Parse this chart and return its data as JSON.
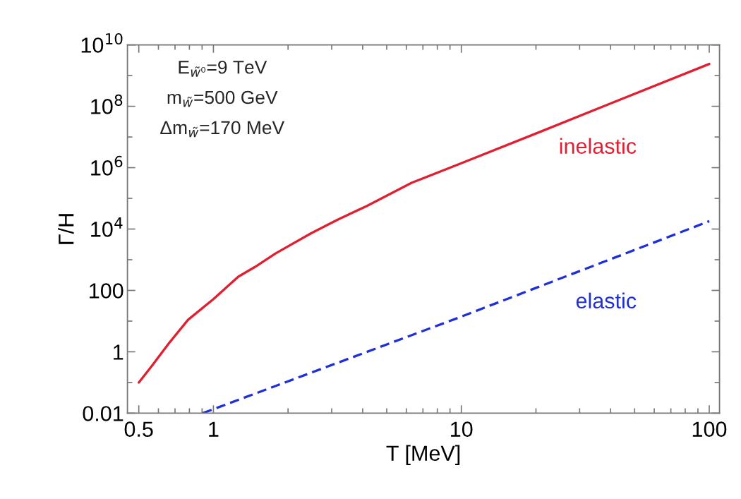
{
  "chart_data": {
    "type": "line",
    "xlabel": "T [MeV]",
    "ylabel": "Γ/H",
    "log": "xy",
    "xlim": [
      0.45,
      110
    ],
    "ylim": [
      0.01,
      10000000000
    ],
    "xticks": [
      0.5,
      1,
      10,
      100
    ],
    "yticks": [
      0.01,
      1,
      100,
      {
        "value": 10000,
        "label": "10$^{4}$"
      },
      {
        "value": 1000000,
        "label": "10$^{6}$"
      },
      {
        "value": 100000000,
        "label": "10$^{8}$"
      },
      {
        "value": 10000000000,
        "label": "10$^{10}$"
      }
    ],
    "grid": false,
    "legend": false,
    "annotations": [
      "E$_{w̃⁰}$=9 TeV",
      "m$_{w̃}$=500 GeV",
      "Δm$_{w̃}$=170 MeV"
    ],
    "series": [
      {
        "name": "inelastic",
        "color": "#e02030",
        "line_style": "solid",
        "x": [
          0.5,
          0.56,
          0.665,
          0.79,
          1,
          1.26,
          1.47,
          1.78,
          2.47,
          3.16,
          4.15,
          6.3,
          10,
          20,
          38.6,
          100
        ],
        "values": [
          0.1,
          0.32,
          2,
          11,
          52,
          280,
          580,
          1600,
          7200,
          20000,
          56000,
          320000,
          1400000,
          13000000,
          110000000,
          2400000000
        ]
      },
      {
        "name": "elastic",
        "color": "#2030d8",
        "line_style": "dashed",
        "x": [
          0.906,
          1,
          10,
          100
        ],
        "values": [
          0.01,
          0.0135,
          14,
          18000
        ]
      }
    ]
  }
}
